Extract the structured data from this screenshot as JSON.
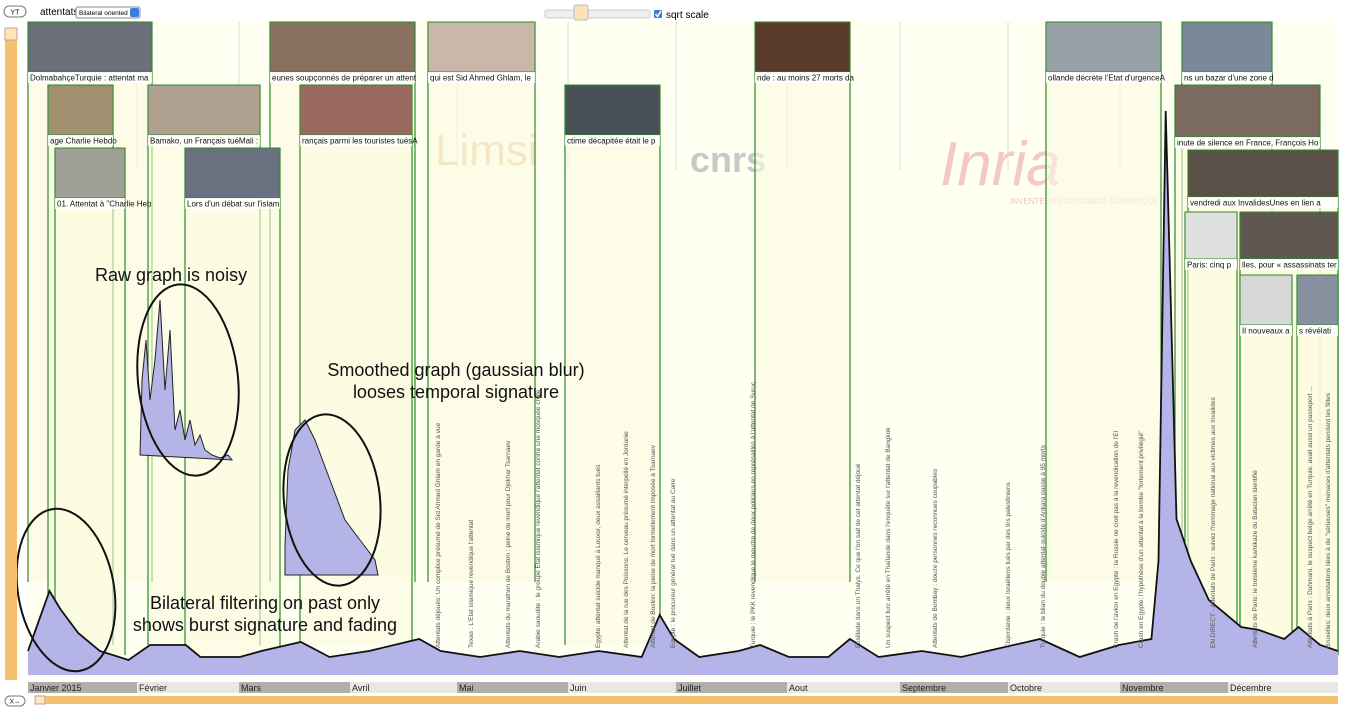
{
  "toolbar": {
    "yt_button": "YT",
    "query": "attentats",
    "filter": "Bilateral oriented",
    "sqrt_scale_label": "sqrt scale",
    "x_button": "X↔"
  },
  "months": [
    "Janvier 2015",
    "Février",
    "Mars",
    "Avril",
    "Mai",
    "Juin",
    "Juillet",
    "Aout",
    "Septembre",
    "Octobre",
    "Novembre",
    "Décembre"
  ],
  "graph": {
    "x": [
      0,
      6,
      9,
      14,
      20,
      28,
      34,
      44,
      48,
      59,
      65,
      76,
      84,
      95,
      109,
      115,
      126,
      137,
      148,
      159,
      171,
      176,
      180,
      187,
      198,
      204,
      212,
      223,
      229,
      237,
      249,
      260,
      271,
      282,
      293,
      304,
      313,
      315,
      317,
      320,
      324,
      329,
      338,
      343,
      350,
      354,
      360,
      365
    ],
    "values": [
      4,
      14,
      11,
      7,
      4,
      2.5,
      5,
      5,
      3,
      3,
      4,
      5.5,
      3,
      4,
      6,
      4,
      3,
      4,
      3,
      4,
      3,
      10,
      6,
      3,
      4,
      5,
      3,
      3,
      6,
      3,
      4,
      3,
      4.5,
      6,
      3,
      5,
      6,
      19,
      94,
      26,
      19,
      12.5,
      8,
      7.5,
      6,
      8,
      5,
      4
    ]
  },
  "thumbnails": [
    {
      "caption": "DolmabahçeTurquie : attentat ma"
    },
    {
      "caption": "eunes soupçonnés de préparer un attent"
    },
    {
      "caption": "qui est Sid Ahmed Ghlam, le"
    },
    {
      "caption": "nde : au moins 27 morts da"
    },
    {
      "caption": "ollande décrète l'Etat d'urgenceA"
    },
    {
      "caption": "ns un bazar d'une zone d"
    },
    {
      "caption": "age Charlie Hebdo"
    },
    {
      "caption": "Bamako, un Français tuéMali :"
    },
    {
      "caption": "rançais parmi les touristes tuésA"
    },
    {
      "caption": "ctime décapitée était le p"
    },
    {
      "caption": "inute de silence en France, François Ho"
    },
    {
      "caption": "01. Attentat à \"Charlie Heb"
    },
    {
      "caption": "Lors d'un débat sur l'islam"
    },
    {
      "caption": "vendredi aux InvalidesUnes en lien a"
    },
    {
      "caption": "Paris: cinq p"
    },
    {
      "caption": "lles, pour « assassinats ter"
    },
    {
      "caption": "Il nouveaux a"
    },
    {
      "caption": "s révélati"
    }
  ],
  "event_labels": [
    "Attentats déjoués: Un complice présumé de Sid Ahmed Ghlam en garde à vue",
    "Texas : L'Etat islamique revendique l'attentat",
    "Attentats du marathon de Boston : peine de mort pour Djokhar Tsarnaev",
    "Arabie saoudite : le groupe Etat islamique revendique l'attentat contre une mosquée chiite",
    "Egypte: attentat suicide manqué à Louxor, deux assaillants tués",
    "Attentat de la rue des Poissons. Le cerveau présumé interpellé en Jordanie",
    "Attentat de Boston: la peine de mort formellement imposée à Tsarnaev",
    "Egypte : le procureur général tué dans un attentat au Caire",
    "Turquie : le PKK revendique le meurtre de deux policiers en représailles à l'attentat de Suruç",
    "Fusillade dans un Thalys. Ce que l'on sait de cet attentat déjoué",
    "Un suspect turc arrêté en Thaïlande dans l'enquête sur l'attentat de Bangkok",
    "Attentats de Bombay : douze personnes reconnues coupables",
    "Cisjordanie : deux Israéliens tués par des tirs palestiniens",
    "Turquie : le bilan du double attentat-suicide d'Ankara passe à 95 morts",
    "Crash de l'avion en Egypte : la Russie ne croit pas à la revendication de l'EI",
    "Crash en Egypte: l'hypothèse d'un attentat à la bombe \"fortement privilégié\"",
    "EN DIRECT - Attentats de Paris : suivez l'hommage national aux victimes aux Invalides",
    "Attentats de Paris: le troisième kamikaze du Bataclan identifié",
    "Attentats à Paris : Dahmani, le suspect belge arrêté en Turquie, avait aussi un passeport ...",
    "Bruxelles: deux arrestations liées à de \"sérieuses\" menaces d'attentats pendant les fêtes"
  ],
  "annotations": [
    "Raw graph is noisy",
    "Smoothed graph (gaussian blur)",
    "looses temporal signature",
    "Bilateral filtering on past only",
    "shows burst signature and fading"
  ],
  "logos": [
    "Limsi",
    "cnrs",
    "Inria",
    "INVENTEURS DU MONDE NUMÉRIQUE"
  ]
}
